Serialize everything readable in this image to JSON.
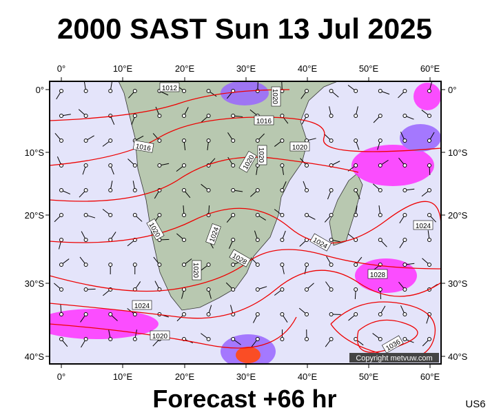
{
  "title": "2000 SAST Sun 13 Jul 2025",
  "footer": "Forecast +66 hr",
  "code": "US6",
  "copyright": "Copyright metvuw.com",
  "lon_labels": [
    "0°",
    "10°E",
    "20°E",
    "30°E",
    "40°E",
    "50°E",
    "60°E"
  ],
  "lat_labels": [
    "0°",
    "10°S",
    "20°S",
    "30°S",
    "40°S"
  ],
  "isobar_labels": [
    "1012",
    "1020",
    "1016",
    "1016",
    "1020",
    "1020",
    "1020",
    "1020",
    "1024",
    "1028",
    "1024",
    "1024",
    "1020",
    "1028",
    "1024",
    "1020",
    "1036"
  ]
}
